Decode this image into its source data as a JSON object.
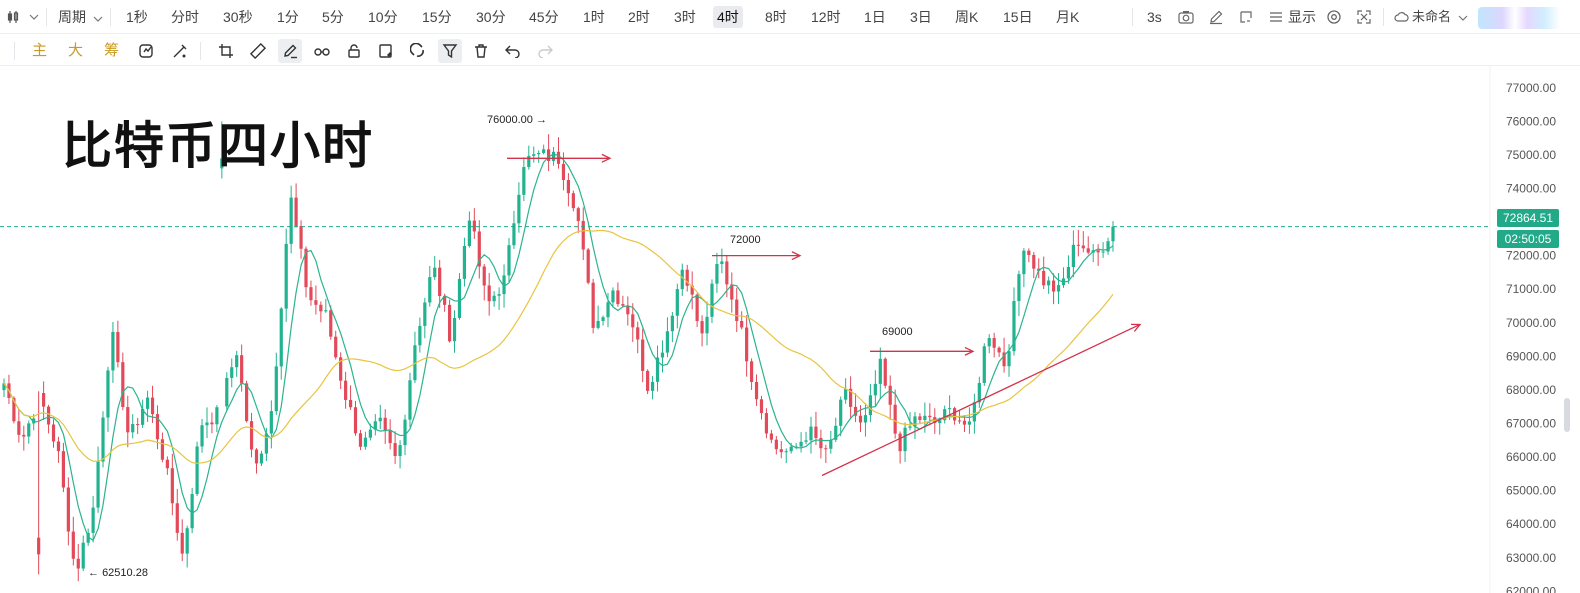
{
  "topbar": {
    "chart_type_icon": "candlestick-icon",
    "period_label": "周期",
    "intervals": [
      "1秒",
      "分时",
      "30秒",
      "1分",
      "5分",
      "10分",
      "15分",
      "30分",
      "45分",
      "1时",
      "2时",
      "3时",
      "4时",
      "8时",
      "12时",
      "1日",
      "3日",
      "周K",
      "15日",
      "月K"
    ],
    "active_interval": "4时",
    "refresh_label": "3s",
    "display_label": "显示",
    "layout_name": "未命名"
  },
  "toolbar2": {
    "indicators": [
      "主",
      "大",
      "筹"
    ],
    "tools": [
      "replay-icon",
      "pen-tool-icon",
      "crop-icon",
      "ruler-icon",
      "brush-icon",
      "spectacles-icon",
      "lock-icon",
      "note-icon",
      "magnet-icon",
      "filter-icon",
      "trash-icon",
      "undo-icon",
      "redo-icon"
    ]
  },
  "chart_data": {
    "type": "candlestick",
    "title": "比特币四小时",
    "y_axis": {
      "ticks": [
        77000,
        76000,
        75000,
        74000,
        73000,
        72000,
        71000,
        70000,
        69000,
        68000,
        67000,
        66000,
        65000,
        64000,
        63000,
        62000
      ],
      "tick_labels": [
        "77000.00",
        "76000.00",
        "75000.00",
        "74000.00",
        "73000.00",
        "72000.00",
        "71000.00",
        "70000.00",
        "69000.00",
        "68000.00",
        "67000.00",
        "66000.00",
        "65000.00",
        "64000.00",
        "63000.00",
        "62000.00"
      ],
      "range": [
        61950,
        77650
      ]
    },
    "last_price": "72864.51",
    "countdown": "02:50:05",
    "high_label": "76000.00",
    "low_label": "62510.28",
    "annotations": [
      {
        "text": "72000",
        "price": 72000
      },
      {
        "text": "69000",
        "price": 69000
      }
    ],
    "colors": {
      "up": "#21b28f",
      "down": "#e34a59",
      "ma_fast": "#2bb48e",
      "ma_slow": "#e8c43f",
      "drawing": "#d2334b",
      "last_price_line": "#22a988"
    },
    "trend_segments": [
      [
        68200,
        66500,
        67800,
        66200,
        62510,
        64500,
        69800,
        66500,
        67800,
        65800,
        63000,
        67000,
        67300,
        69200,
        65500,
        67500,
        73800,
        70800,
        70200,
        68000,
        66300,
        67000,
        65800,
        69500,
        71700,
        69500,
        73300,
        70500,
        71300,
        74800,
        75000,
        74900,
        73400,
        69800,
        71000,
        70300,
        68100,
        69600,
        71800,
        69500,
        72000,
        70200,
        68000,
        66300,
        66100,
        66800,
        66000,
        67900,
        66800,
        68700,
        66300,
        67200,
        67000,
        67400,
        66800,
        69800,
        68700,
        72400,
        71300,
        70900,
        72500,
        71900,
        72864
      ]
    ]
  }
}
